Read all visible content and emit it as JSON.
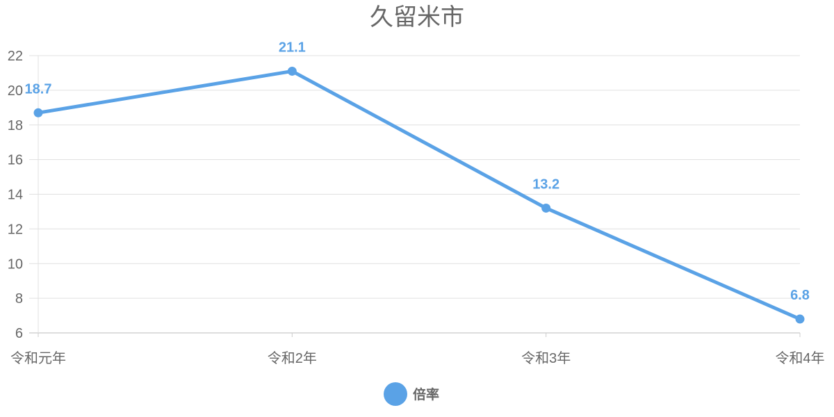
{
  "chart_data": {
    "type": "line",
    "title": "久留米市",
    "categories": [
      "令和元年",
      "令和2年",
      "令和3年",
      "令和4年"
    ],
    "series": [
      {
        "name": "倍率",
        "values": [
          18.7,
          21.1,
          13.2,
          6.8
        ],
        "color": "#5aa2e6"
      }
    ],
    "data_labels": [
      "18.7",
      "21.1",
      "13.2",
      "6.8"
    ],
    "ylim": [
      6,
      22
    ],
    "yticks": [
      "6",
      "8",
      "10",
      "12",
      "14",
      "16",
      "18",
      "20",
      "22"
    ],
    "grid": true,
    "legend_position": "bottom"
  }
}
